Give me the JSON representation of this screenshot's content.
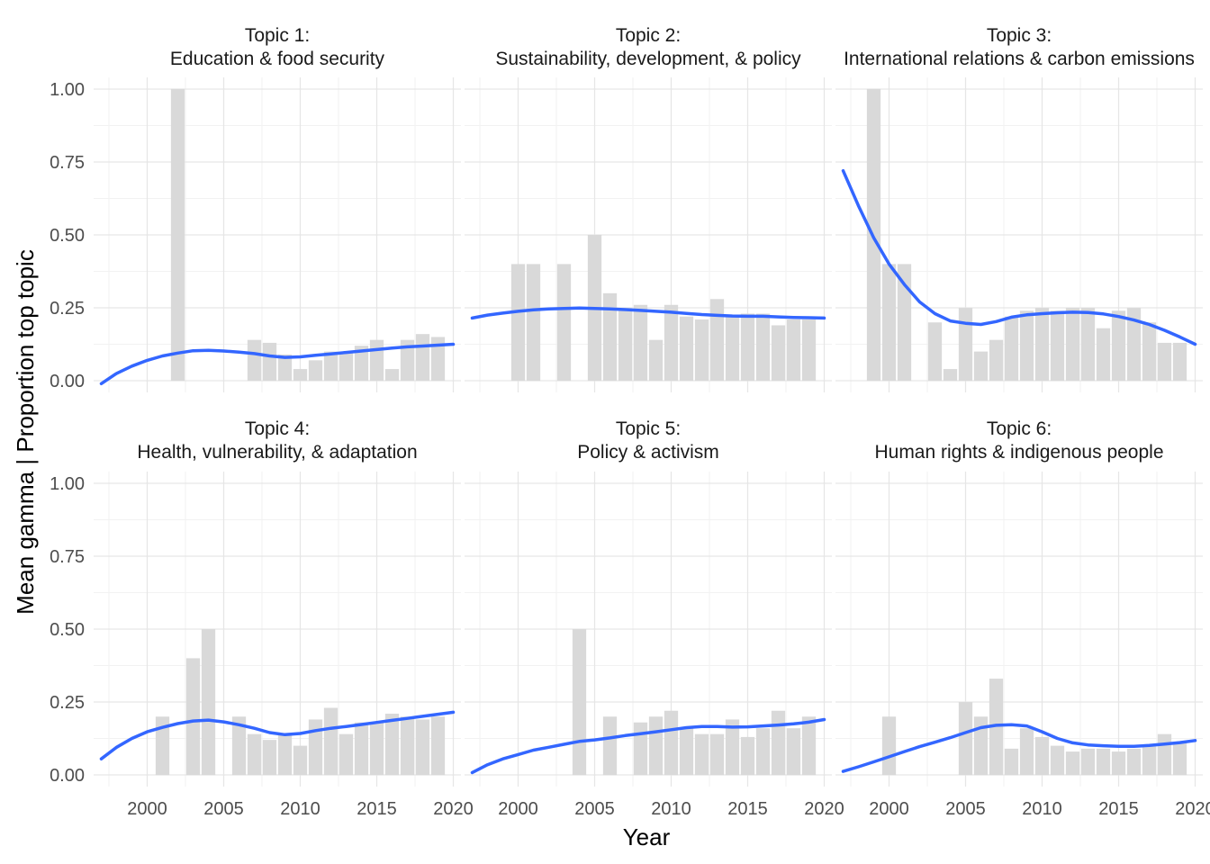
{
  "chart_data": {
    "type": "bar",
    "layout": "facet-grid 2x3",
    "xlabel": "Year",
    "ylabel": "Mean gamma | Proportion top topic",
    "xlim": [
      1996.5,
      2020.5
    ],
    "ylim": [
      -0.04,
      1.04
    ],
    "xticks": [
      2000,
      2005,
      2010,
      2015,
      2020
    ],
    "yticks": [
      0,
      0.25,
      0.5,
      0.75,
      1
    ],
    "ytick_labels": [
      "0.00",
      "0.25",
      "0.50",
      "0.75",
      "1.00"
    ],
    "grid": true,
    "bar_color": "#d9d9d9",
    "line_color": "#3366ff",
    "facets": [
      {
        "title_line1": "Topic 1:",
        "title_line2": "Education & food security",
        "bars": {
          "x": [
            2002,
            2007,
            2008,
            2009,
            2010,
            2011,
            2012,
            2013,
            2014,
            2015,
            2016,
            2017,
            2018,
            2019
          ],
          "y": [
            1.0,
            0.14,
            0.13,
            0.09,
            0.04,
            0.07,
            0.1,
            0.1,
            0.12,
            0.14,
            0.04,
            0.14,
            0.16,
            0.15
          ]
        },
        "smooth": {
          "x": [
            1997,
            1998,
            1999,
            2000,
            2001,
            2002,
            2003,
            2004,
            2005,
            2006,
            2007,
            2008,
            2009,
            2010,
            2011,
            2012,
            2013,
            2014,
            2015,
            2016,
            2017,
            2018,
            2019,
            2020
          ],
          "y": [
            -0.01,
            0.025,
            0.05,
            0.07,
            0.085,
            0.095,
            0.103,
            0.104,
            0.102,
            0.098,
            0.093,
            0.085,
            0.08,
            0.082,
            0.087,
            0.092,
            0.097,
            0.102,
            0.107,
            0.112,
            0.116,
            0.119,
            0.122,
            0.125
          ]
        }
      },
      {
        "title_line1": "Topic 2:",
        "title_line2": "Sustainability, development, & policy",
        "bars": {
          "x": [
            2000,
            2001,
            2003,
            2005,
            2006,
            2007,
            2008,
            2009,
            2010,
            2011,
            2012,
            2013,
            2014,
            2015,
            2016,
            2017,
            2018,
            2019
          ],
          "y": [
            0.4,
            0.4,
            0.4,
            0.5,
            0.3,
            0.25,
            0.26,
            0.14,
            0.26,
            0.22,
            0.21,
            0.28,
            0.22,
            0.23,
            0.23,
            0.19,
            0.21,
            0.21
          ]
        },
        "smooth": {
          "x": [
            1997,
            1998,
            1999,
            2000,
            2001,
            2002,
            2003,
            2004,
            2005,
            2006,
            2007,
            2008,
            2009,
            2010,
            2011,
            2012,
            2013,
            2014,
            2015,
            2016,
            2017,
            2018,
            2019,
            2020
          ],
          "y": [
            0.215,
            0.225,
            0.232,
            0.238,
            0.243,
            0.246,
            0.248,
            0.249,
            0.248,
            0.246,
            0.244,
            0.241,
            0.238,
            0.235,
            0.231,
            0.227,
            0.224,
            0.222,
            0.221,
            0.221,
            0.219,
            0.217,
            0.216,
            0.215
          ]
        }
      },
      {
        "title_line1": "Topic 3:",
        "title_line2": "International relations & carbon emissions",
        "bars": {
          "x": [
            1999,
            2000,
            2001,
            2003,
            2004,
            2005,
            2006,
            2007,
            2008,
            2009,
            2010,
            2011,
            2012,
            2013,
            2014,
            2015,
            2016,
            2017,
            2018,
            2019
          ],
          "y": [
            1.0,
            0.4,
            0.4,
            0.2,
            0.04,
            0.25,
            0.1,
            0.14,
            0.22,
            0.24,
            0.25,
            0.24,
            0.25,
            0.25,
            0.18,
            0.24,
            0.25,
            0.2,
            0.13,
            0.13
          ]
        },
        "smooth": {
          "x": [
            1997,
            1998,
            1999,
            2000,
            2001,
            2002,
            2003,
            2004,
            2005,
            2006,
            2007,
            2008,
            2009,
            2010,
            2011,
            2012,
            2013,
            2014,
            2015,
            2016,
            2017,
            2018,
            2019,
            2020
          ],
          "y": [
            0.72,
            0.6,
            0.49,
            0.4,
            0.33,
            0.27,
            0.23,
            0.205,
            0.197,
            0.193,
            0.203,
            0.218,
            0.226,
            0.23,
            0.233,
            0.235,
            0.234,
            0.229,
            0.22,
            0.208,
            0.193,
            0.173,
            0.15,
            0.125
          ]
        }
      },
      {
        "title_line1": "Topic 4:",
        "title_line2": "Health, vulnerability, & adaptation",
        "bars": {
          "x": [
            2001,
            2003,
            2004,
            2006,
            2007,
            2008,
            2009,
            2010,
            2011,
            2012,
            2013,
            2014,
            2015,
            2016,
            2017,
            2018,
            2019
          ],
          "y": [
            0.2,
            0.4,
            0.5,
            0.2,
            0.14,
            0.12,
            0.14,
            0.1,
            0.19,
            0.23,
            0.14,
            0.18,
            0.18,
            0.21,
            0.2,
            0.19,
            0.2
          ]
        },
        "smooth": {
          "x": [
            1997,
            1998,
            1999,
            2000,
            2001,
            2002,
            2003,
            2004,
            2005,
            2006,
            2007,
            2008,
            2009,
            2010,
            2011,
            2012,
            2013,
            2014,
            2015,
            2016,
            2017,
            2018,
            2019,
            2020
          ],
          "y": [
            0.055,
            0.095,
            0.125,
            0.148,
            0.163,
            0.176,
            0.185,
            0.188,
            0.182,
            0.172,
            0.16,
            0.145,
            0.138,
            0.142,
            0.152,
            0.16,
            0.166,
            0.173,
            0.18,
            0.187,
            0.194,
            0.201,
            0.208,
            0.215
          ]
        }
      },
      {
        "title_line1": "Topic 5:",
        "title_line2": "Policy & activism",
        "bars": {
          "x": [
            2004,
            2006,
            2008,
            2009,
            2010,
            2011,
            2012,
            2013,
            2014,
            2015,
            2016,
            2017,
            2018,
            2019
          ],
          "y": [
            0.5,
            0.2,
            0.18,
            0.2,
            0.22,
            0.16,
            0.14,
            0.14,
            0.19,
            0.13,
            0.16,
            0.22,
            0.16,
            0.2
          ]
        },
        "smooth": {
          "x": [
            1997,
            1998,
            1999,
            2000,
            2001,
            2002,
            2003,
            2004,
            2005,
            2006,
            2007,
            2008,
            2009,
            2010,
            2011,
            2012,
            2013,
            2014,
            2015,
            2016,
            2017,
            2018,
            2019,
            2020
          ],
          "y": [
            0.008,
            0.035,
            0.055,
            0.07,
            0.085,
            0.095,
            0.105,
            0.115,
            0.12,
            0.127,
            0.135,
            0.141,
            0.148,
            0.155,
            0.162,
            0.166,
            0.166,
            0.164,
            0.165,
            0.168,
            0.171,
            0.175,
            0.181,
            0.19
          ]
        }
      },
      {
        "title_line1": "Topic 6:",
        "title_line2": "Human rights & indigenous people",
        "bars": {
          "x": [
            2000,
            2005,
            2006,
            2007,
            2008,
            2009,
            2010,
            2011,
            2012,
            2013,
            2014,
            2015,
            2016,
            2017,
            2018,
            2019
          ],
          "y": [
            0.2,
            0.25,
            0.2,
            0.33,
            0.09,
            0.16,
            0.13,
            0.1,
            0.08,
            0.09,
            0.09,
            0.08,
            0.09,
            0.1,
            0.14,
            0.11
          ]
        },
        "smooth": {
          "x": [
            1997,
            1998,
            1999,
            2000,
            2001,
            2002,
            2003,
            2004,
            2005,
            2006,
            2007,
            2008,
            2009,
            2010,
            2011,
            2012,
            2013,
            2014,
            2015,
            2016,
            2017,
            2018,
            2019,
            2020
          ],
          "y": [
            0.012,
            0.028,
            0.045,
            0.062,
            0.08,
            0.097,
            0.112,
            0.128,
            0.145,
            0.162,
            0.17,
            0.172,
            0.168,
            0.148,
            0.125,
            0.11,
            0.103,
            0.1,
            0.098,
            0.098,
            0.101,
            0.106,
            0.111,
            0.118
          ]
        }
      }
    ]
  }
}
